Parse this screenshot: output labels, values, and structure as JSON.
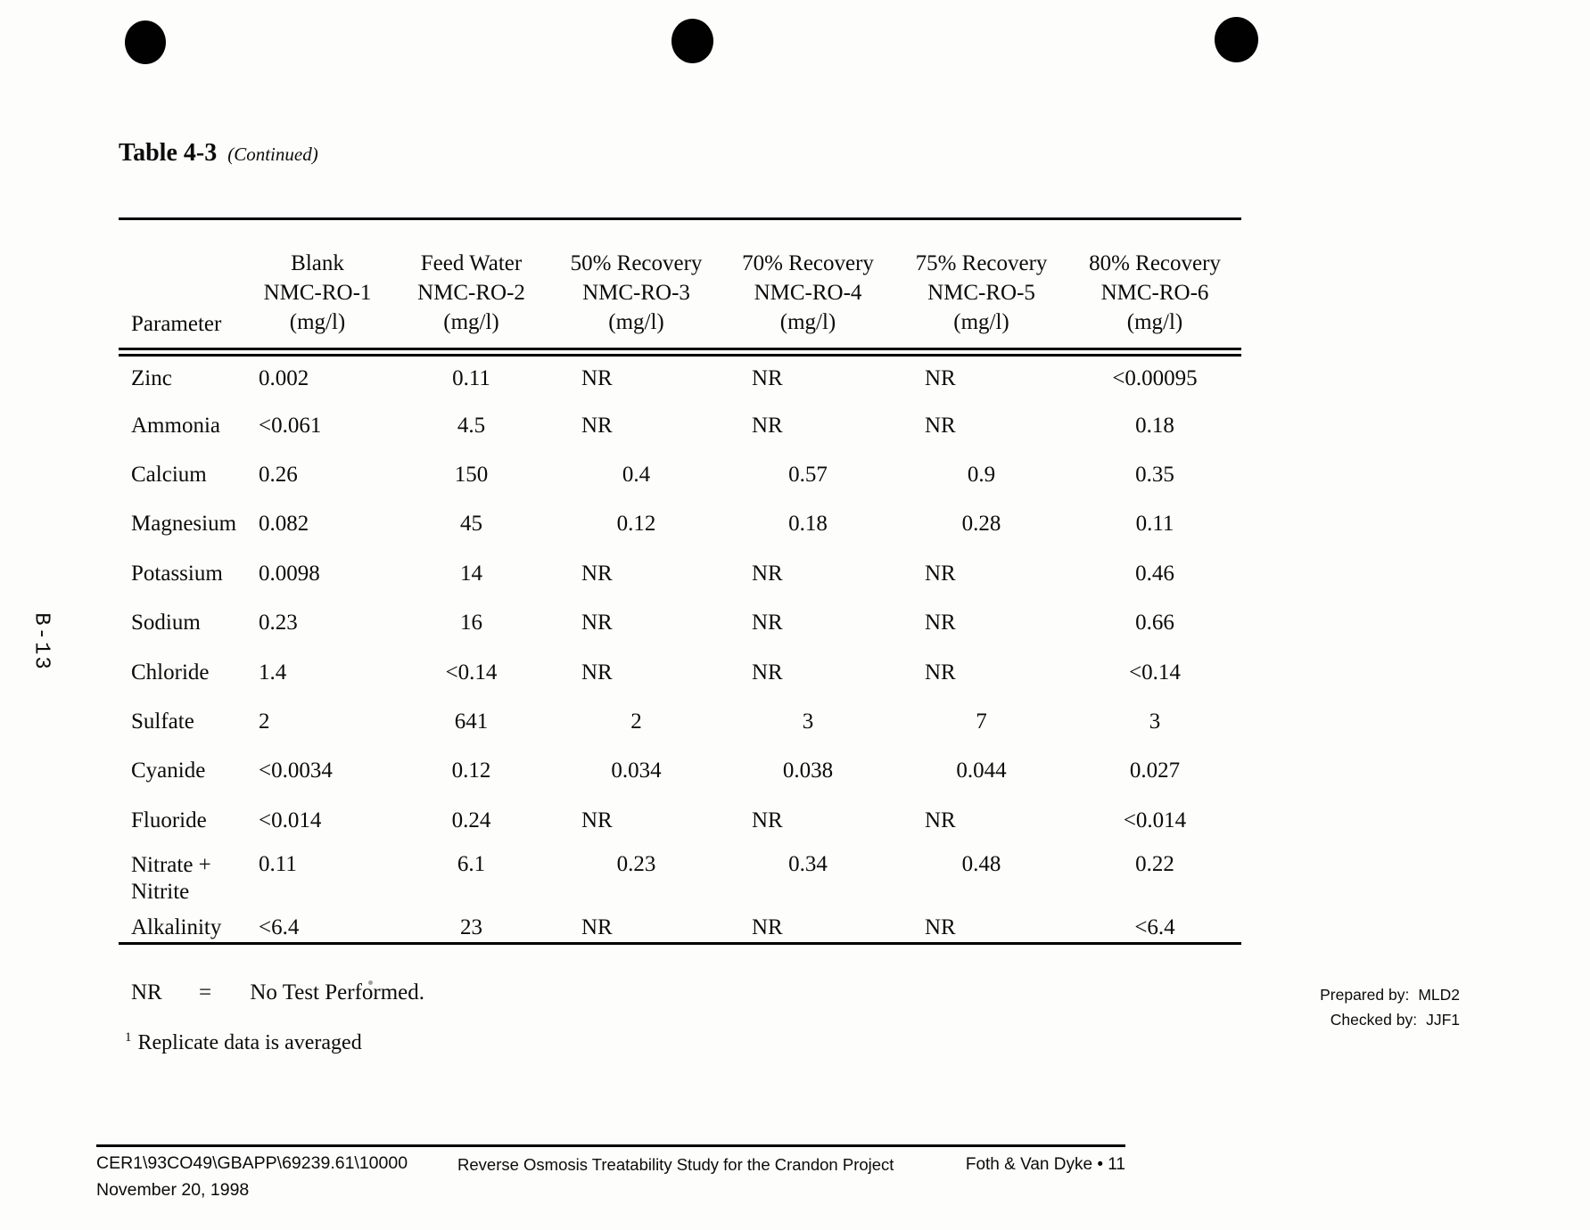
{
  "page": {
    "title": "Table 4-3",
    "title_suffix": "(Continued)",
    "side_label": "B-13"
  },
  "table": {
    "param_header": "Parameter",
    "columns": [
      {
        "label": "Blank",
        "sample": "NMC-RO-1",
        "unit": "(mg/l)"
      },
      {
        "label": "Feed Water",
        "sample": "NMC-RO-2",
        "unit": "(mg/l)"
      },
      {
        "label": "50% Recovery",
        "sample": "NMC-RO-3",
        "unit": "(mg/l)"
      },
      {
        "label": "70% Recovery",
        "sample": "NMC-RO-4",
        "unit": "(mg/l)"
      },
      {
        "label": "75% Recovery",
        "sample": "NMC-RO-5",
        "unit": "(mg/l)"
      },
      {
        "label": "80% Recovery",
        "sample": "NMC-RO-6",
        "unit": "(mg/l)"
      }
    ],
    "rows": [
      {
        "parameter": "Zinc",
        "values": [
          "0.002",
          "0.11",
          "NR",
          "NR",
          "NR",
          "<0.00095"
        ]
      },
      {
        "parameter": "Ammonia",
        "values": [
          "<0.061",
          "4.5",
          "NR",
          "NR",
          "NR",
          "0.18"
        ]
      },
      {
        "parameter": "Calcium",
        "values": [
          "0.26",
          "150",
          "0.4",
          "0.57",
          "0.9",
          "0.35"
        ]
      },
      {
        "parameter": "Magnesium",
        "values": [
          "0.082",
          "45",
          "0.12",
          "0.18",
          "0.28",
          "0.11"
        ]
      },
      {
        "parameter": "Potassium",
        "values": [
          "0.0098",
          "14",
          "NR",
          "NR",
          "NR",
          "0.46"
        ]
      },
      {
        "parameter": "Sodium",
        "values": [
          "0.23",
          "16",
          "NR",
          "NR",
          "NR",
          "0.66"
        ]
      },
      {
        "parameter": "Chloride",
        "values": [
          "1.4",
          "<0.14",
          "NR",
          "NR",
          "NR",
          "<0.14"
        ]
      },
      {
        "parameter": "Sulfate",
        "values": [
          "2",
          "641",
          "2",
          "3",
          "7",
          "3"
        ]
      },
      {
        "parameter": "Cyanide",
        "values": [
          "<0.0034",
          "0.12",
          "0.034",
          "0.038",
          "0.044",
          "0.027"
        ]
      },
      {
        "parameter": "Fluoride",
        "values": [
          "<0.014",
          "0.24",
          "NR",
          "NR",
          "NR",
          "<0.014"
        ]
      },
      {
        "parameter": "Nitrate +",
        "parameter2": "Nitrite",
        "values": [
          "0.11",
          "6.1",
          "0.23",
          "0.34",
          "0.48",
          "0.22"
        ]
      },
      {
        "parameter": "Alkalinity",
        "values": [
          "<6.4",
          "23",
          "NR",
          "NR",
          "NR",
          "<6.4"
        ]
      }
    ]
  },
  "notes": {
    "nr_term": "NR",
    "nr_eq": "=",
    "nr_definition": "No Test Performed.",
    "footnote_marker": "1",
    "footnote_text": "Replicate data is averaged"
  },
  "signoff": {
    "prepared_label": "Prepared by:",
    "prepared_value": "MLD2",
    "checked_label": "Checked by:",
    "checked_value": "JJF1"
  },
  "footer": {
    "doc_ref": "CER1\\93CO49\\GBAPP\\69239.61\\10000",
    "date": "November 20, 1998",
    "center": "Reverse Osmosis Treatability Study for the Crandon Project",
    "right": "Foth & Van Dyke • 11"
  }
}
